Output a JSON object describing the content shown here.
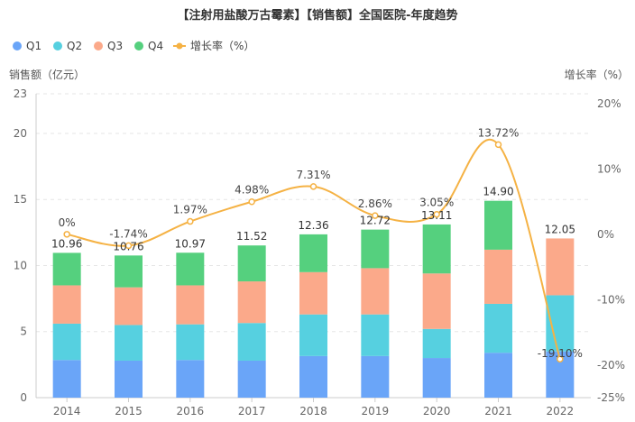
{
  "title": "【注射用盐酸万古霉素】【销售额】全国医院-年度趋势",
  "chart_data": {
    "type": "bar",
    "stacked": true,
    "categories": [
      "2014",
      "2015",
      "2016",
      "2017",
      "2018",
      "2019",
      "2020",
      "2021",
      "2022"
    ],
    "series": [
      {
        "name": "Q1",
        "color": "#6aa5f8",
        "values": [
          2.85,
          2.8,
          2.85,
          2.8,
          3.15,
          3.15,
          3.0,
          3.4,
          3.5
        ]
      },
      {
        "name": "Q2",
        "color": "#56d0e0",
        "values": [
          2.75,
          2.7,
          2.7,
          2.85,
          3.15,
          3.15,
          2.2,
          3.7,
          4.25
        ]
      },
      {
        "name": "Q3",
        "color": "#fba98a",
        "values": [
          2.9,
          2.85,
          2.95,
          3.15,
          3.2,
          3.5,
          4.2,
          4.1,
          4.3
        ]
      },
      {
        "name": "Q4",
        "color": "#55d07e",
        "values": [
          2.46,
          2.41,
          2.47,
          2.72,
          2.86,
          2.92,
          3.71,
          3.7,
          0
        ]
      }
    ],
    "totals": [
      "10.96",
      "10.76",
      "10.97",
      "11.52",
      "12.36",
      "12.72",
      "13.11",
      "14.90",
      "12.05"
    ],
    "line": {
      "name": "增长率（%）",
      "color": "#f5b244",
      "values": [
        0,
        -1.74,
        1.97,
        4.98,
        7.31,
        2.86,
        3.05,
        13.72,
        -19.1
      ],
      "labels": [
        "0%",
        "-1.74%",
        "1.97%",
        "4.98%",
        "7.31%",
        "2.86%",
        "3.05%",
        "13.72%",
        "-19.10%"
      ]
    },
    "y_left": {
      "label": "销售额（亿元）",
      "ticks": [
        0,
        5,
        10,
        15,
        20,
        23
      ],
      "range": [
        0,
        23
      ]
    },
    "y_right": {
      "label": "增长率（%）",
      "ticks": [
        "20%",
        "10%",
        "0%",
        "-10%",
        "-20%",
        "-25%"
      ],
      "tick_values": [
        20,
        10,
        0,
        -10,
        -20,
        -25
      ],
      "range": [
        -25,
        21.5
      ]
    },
    "grid": true,
    "legend_position": "top-left"
  }
}
